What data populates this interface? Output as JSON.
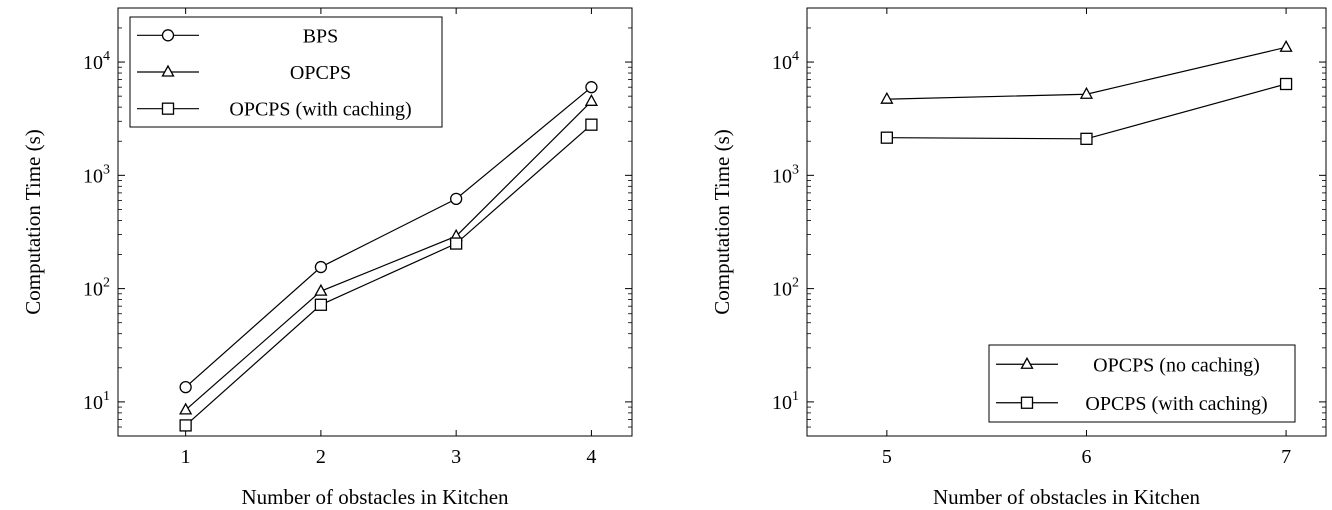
{
  "chart_data": [
    {
      "type": "line",
      "xlabel": "Number of obstacles in Kitchen",
      "ylabel": "Computation Time (s)",
      "yscale": "log",
      "xlim": [
        0.5,
        4.3
      ],
      "ylim": [
        5,
        30000
      ],
      "x_ticks": [
        1,
        2,
        3,
        4
      ],
      "y_ticks": [
        {
          "base": "10",
          "exp": "1",
          "value": 10
        },
        {
          "base": "10",
          "exp": "2",
          "value": 100
        },
        {
          "base": "10",
          "exp": "3",
          "value": 1000
        },
        {
          "base": "10",
          "exp": "4",
          "value": 10000
        }
      ],
      "grid": false,
      "legend_position": "top-left",
      "series": [
        {
          "name": "BPS",
          "marker": "circle",
          "x": [
            1,
            2,
            3,
            4
          ],
          "values": [
            13.5,
            155,
            620,
            6000
          ]
        },
        {
          "name": "OPCPS",
          "marker": "triangle",
          "x": [
            1,
            2,
            3,
            4
          ],
          "values": [
            8.5,
            95,
            290,
            4500
          ]
        },
        {
          "name": "OPCPS (with caching)",
          "marker": "square",
          "x": [
            1,
            2,
            3,
            4
          ],
          "values": [
            6.2,
            72,
            250,
            2800
          ]
        }
      ]
    },
    {
      "type": "line",
      "xlabel": "Number of obstacles in Kitchen",
      "ylabel": "Computation Time (s)",
      "yscale": "log",
      "xlim": [
        4.6,
        7.2
      ],
      "ylim": [
        5,
        30000
      ],
      "x_ticks": [
        5,
        6,
        7
      ],
      "y_ticks": [
        {
          "base": "10",
          "exp": "1",
          "value": 10
        },
        {
          "base": "10",
          "exp": "2",
          "value": 100
        },
        {
          "base": "10",
          "exp": "3",
          "value": 1000
        },
        {
          "base": "10",
          "exp": "4",
          "value": 10000
        }
      ],
      "grid": false,
      "legend_position": "bottom-right",
      "series": [
        {
          "name": "OPCPS (no caching)",
          "marker": "triangle",
          "x": [
            5,
            6,
            7
          ],
          "values": [
            4700,
            5200,
            13500
          ]
        },
        {
          "name": "OPCPS (with caching)",
          "marker": "square",
          "x": [
            5,
            6,
            7
          ],
          "values": [
            2150,
            2100,
            6400
          ]
        }
      ]
    }
  ]
}
